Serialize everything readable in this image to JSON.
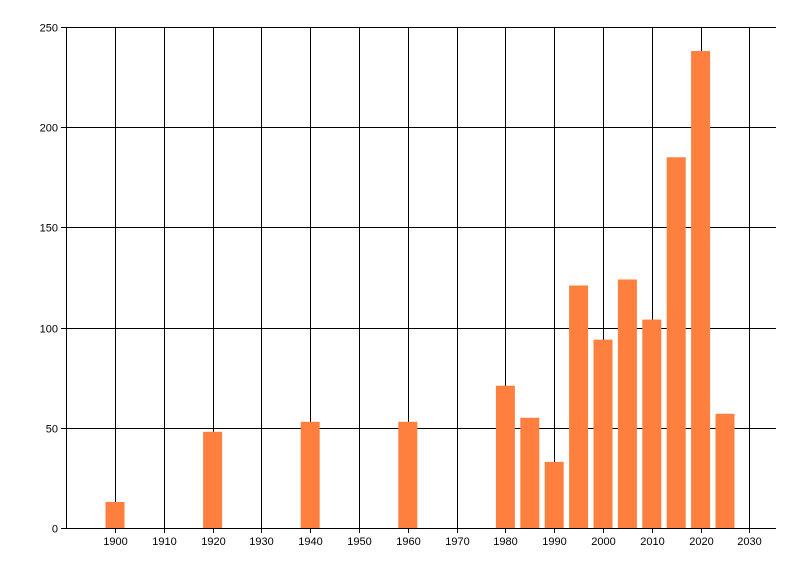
{
  "chart_data": {
    "type": "bar",
    "title": "",
    "xlabel": "",
    "ylabel": "",
    "xlim": [
      1890,
      2030
    ],
    "ylim": [
      0,
      250
    ],
    "x_ticks": [
      1900,
      1910,
      1920,
      1930,
      1940,
      1950,
      1960,
      1970,
      1980,
      1990,
      2000,
      2010,
      2020,
      2030
    ],
    "y_ticks": [
      0,
      50,
      100,
      150,
      200,
      250
    ],
    "x_tick_labels": [
      "1900",
      "1910",
      "1920",
      "1930",
      "1940",
      "1950",
      "1960",
      "1970",
      "1980",
      "1990",
      "2000",
      "2010",
      "2020",
      "2030"
    ],
    "y_tick_labels": [
      "0",
      "50",
      "100",
      "150",
      "200",
      "250"
    ],
    "grid": true,
    "bar_color": "#ff7f3f",
    "x": [
      1900,
      1920,
      1940,
      1960,
      1980,
      1985,
      1990,
      1995,
      2000,
      2005,
      2010,
      2015,
      2020,
      2025
    ],
    "values": [
      13,
      48,
      53,
      53,
      71,
      55,
      33,
      121,
      94,
      124,
      104,
      185,
      238,
      57
    ]
  }
}
